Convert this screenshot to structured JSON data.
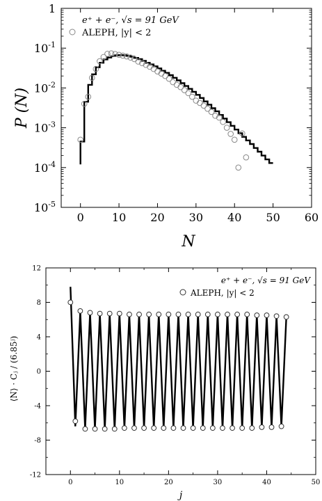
{
  "chart_data": [
    {
      "type": "scatter",
      "xlabel": "N",
      "ylabel": "P (N)",
      "xlim": [
        -5,
        60
      ],
      "ylim": [
        1e-05,
        1
      ],
      "yscale": "log",
      "x_ticks": [
        "0",
        "10",
        "20",
        "30",
        "40",
        "50",
        "60"
      ],
      "y_ticks": [
        {
          "base": "1",
          "exp": ""
        },
        {
          "base": "10",
          "exp": "-1"
        },
        {
          "base": "10",
          "exp": "-2"
        },
        {
          "base": "10",
          "exp": "-3"
        },
        {
          "base": "10",
          "exp": "-4"
        },
        {
          "base": "10",
          "exp": "-5"
        }
      ],
      "legend": {
        "line": "e⁺ + e⁻, √s = 91 GeV",
        "points": "ALEPH, |y| < 2",
        "placement": "top-left"
      },
      "series": [
        {
          "name": "ALEPH, |y| < 2",
          "style": "open-circle",
          "x": [
            0,
            1,
            2,
            3,
            4,
            5,
            6,
            7,
            8,
            9,
            10,
            11,
            12,
            13,
            14,
            15,
            16,
            17,
            18,
            19,
            20,
            21,
            22,
            23,
            24,
            25,
            26,
            27,
            28,
            29,
            30,
            31,
            32,
            33,
            34,
            35,
            36,
            37,
            38,
            39,
            40,
            41,
            42,
            43
          ],
          "y": [
            0.0005,
            0.004,
            0.006,
            0.018,
            0.03,
            0.047,
            0.06,
            0.072,
            0.074,
            0.071,
            0.068,
            0.065,
            0.062,
            0.058,
            0.053,
            0.046,
            0.042,
            0.038,
            0.034,
            0.03,
            0.026,
            0.023,
            0.02,
            0.017,
            0.014,
            0.012,
            0.0105,
            0.0088,
            0.0074,
            0.006,
            0.0048,
            0.0042,
            0.0036,
            0.003,
            0.0025,
            0.002,
            0.0018,
            0.0014,
            0.001,
            0.0007,
            0.0005,
            0.0001,
            0.00072,
            0.00018
          ]
        },
        {
          "name": "e⁺ + e⁻, √s = 91 GeV",
          "style": "step-line",
          "x": [
            0,
            1,
            2,
            3,
            4,
            5,
            6,
            7,
            8,
            9,
            10,
            11,
            12,
            13,
            14,
            15,
            16,
            17,
            18,
            19,
            20,
            21,
            22,
            23,
            24,
            25,
            26,
            27,
            28,
            29,
            30,
            31,
            32,
            33,
            34,
            35,
            36,
            37,
            38,
            39,
            40,
            41,
            42,
            43,
            44,
            45,
            46,
            47,
            48,
            49
          ],
          "y": [
            0.00045,
            0.0045,
            0.012,
            0.022,
            0.033,
            0.043,
            0.052,
            0.058,
            0.063,
            0.066,
            0.067,
            0.066,
            0.064,
            0.061,
            0.057,
            0.053,
            0.048,
            0.043,
            0.039,
            0.035,
            0.031,
            0.027,
            0.024,
            0.021,
            0.018,
            0.0155,
            0.0132,
            0.0112,
            0.0095,
            0.008,
            0.0067,
            0.0056,
            0.0046,
            0.0038,
            0.0031,
            0.0026,
            0.0021,
            0.0017,
            0.00138,
            0.00112,
            0.0009,
            0.00073,
            0.00059,
            0.00048,
            0.00039,
            0.00031,
            0.00025,
            0.0002,
            0.00016,
            0.00013
          ]
        }
      ]
    },
    {
      "type": "line",
      "xlabel": "j",
      "ylabel": "⟨N⟩ · Cⱼ / (6.85ʲ)",
      "xlim": [
        -5,
        50
      ],
      "ylim": [
        -12,
        12
      ],
      "x_ticks": [
        "0",
        "10",
        "20",
        "30",
        "40",
        "50"
      ],
      "y_ticks": [
        "12",
        "8",
        "4",
        "0",
        "-4",
        "-8",
        "-12"
      ],
      "legend": {
        "line": "e⁺ + e⁻, √s = 91 GeV",
        "points": "ALEPH, |y| < 2",
        "placement": "top-right"
      },
      "series": [
        {
          "name": "ALEPH, |y| < 2",
          "style": "open-circle",
          "x": [
            0,
            1,
            2,
            3,
            4,
            5,
            6,
            7,
            8,
            9,
            10,
            11,
            12,
            13,
            14,
            15,
            16,
            17,
            18,
            19,
            20,
            21,
            22,
            23,
            24,
            25,
            26,
            27,
            28,
            29,
            30,
            31,
            32,
            33,
            34,
            35,
            36,
            37,
            38,
            39,
            40,
            41,
            42,
            43,
            44
          ],
          "y": [
            8,
            -5.8,
            7,
            -6.7,
            6.8,
            -6.7,
            6.7,
            -6.7,
            6.7,
            -6.7,
            6.7,
            -6.6,
            6.6,
            -6.6,
            6.6,
            -6.6,
            6.6,
            -6.6,
            6.6,
            -6.6,
            6.6,
            -6.6,
            6.6,
            -6.6,
            6.6,
            -6.6,
            6.6,
            -6.6,
            6.6,
            -6.6,
            6.6,
            -6.6,
            6.6,
            -6.6,
            6.6,
            -6.6,
            6.6,
            -6.6,
            6.5,
            -6.5,
            6.5,
            -6.5,
            6.4,
            -6.4,
            6.3
          ]
        },
        {
          "name": "e⁺ + e⁻, √s = 91 GeV",
          "style": "line",
          "x": [
            0,
            1,
            2,
            3,
            4,
            5,
            6,
            7,
            8,
            9,
            10,
            11,
            12,
            13,
            14,
            15,
            16,
            17,
            18,
            19,
            20,
            21,
            22,
            23,
            24,
            25,
            26,
            27,
            28,
            29,
            30,
            31,
            32,
            33,
            34,
            35,
            36,
            37,
            38,
            39,
            40,
            41,
            42,
            43,
            44
          ],
          "y": [
            9.8,
            -6.4,
            6.9,
            -6.7,
            6.8,
            -6.7,
            6.7,
            -6.7,
            6.7,
            -6.7,
            6.7,
            -6.6,
            6.6,
            -6.6,
            6.6,
            -6.6,
            6.6,
            -6.6,
            6.6,
            -6.6,
            6.6,
            -6.6,
            6.6,
            -6.6,
            6.6,
            -6.6,
            6.6,
            -6.6,
            6.6,
            -6.6,
            6.6,
            -6.6,
            6.6,
            -6.6,
            6.6,
            -6.6,
            6.6,
            -6.6,
            6.5,
            -6.5,
            6.5,
            -6.5,
            6.4,
            -6.4,
            6.3
          ]
        }
      ]
    }
  ]
}
